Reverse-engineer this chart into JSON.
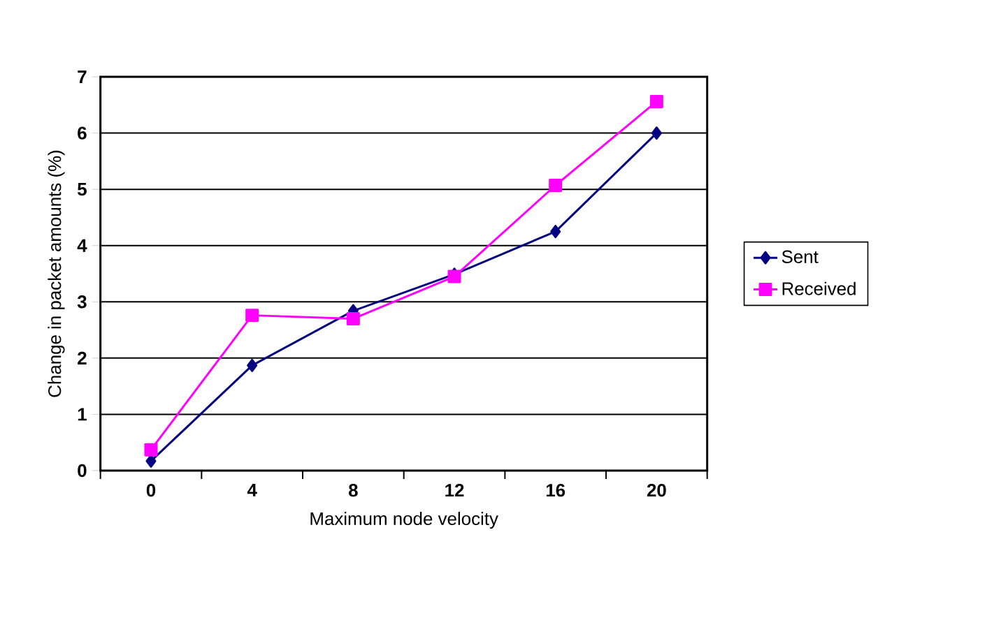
{
  "chart_data": {
    "type": "line",
    "xlabel": "Maximum node velocity",
    "ylabel": "Change in packet amounts (%)",
    "categories": [
      "0",
      "4",
      "8",
      "12",
      "16",
      "20"
    ],
    "series": [
      {
        "name": "Sent",
        "color": "#000080",
        "marker": "diamond",
        "values": [
          0.17,
          1.87,
          2.84,
          3.49,
          4.25,
          6.0
        ]
      },
      {
        "name": "Received",
        "color": "#ff00ff",
        "marker": "square",
        "values": [
          0.37,
          2.76,
          2.7,
          3.45,
          5.07,
          6.56
        ]
      }
    ],
    "ylim": [
      0,
      7
    ],
    "yticks": [
      0,
      1,
      2,
      3,
      4,
      5,
      6,
      7
    ],
    "grid": "y",
    "legend": "right"
  }
}
